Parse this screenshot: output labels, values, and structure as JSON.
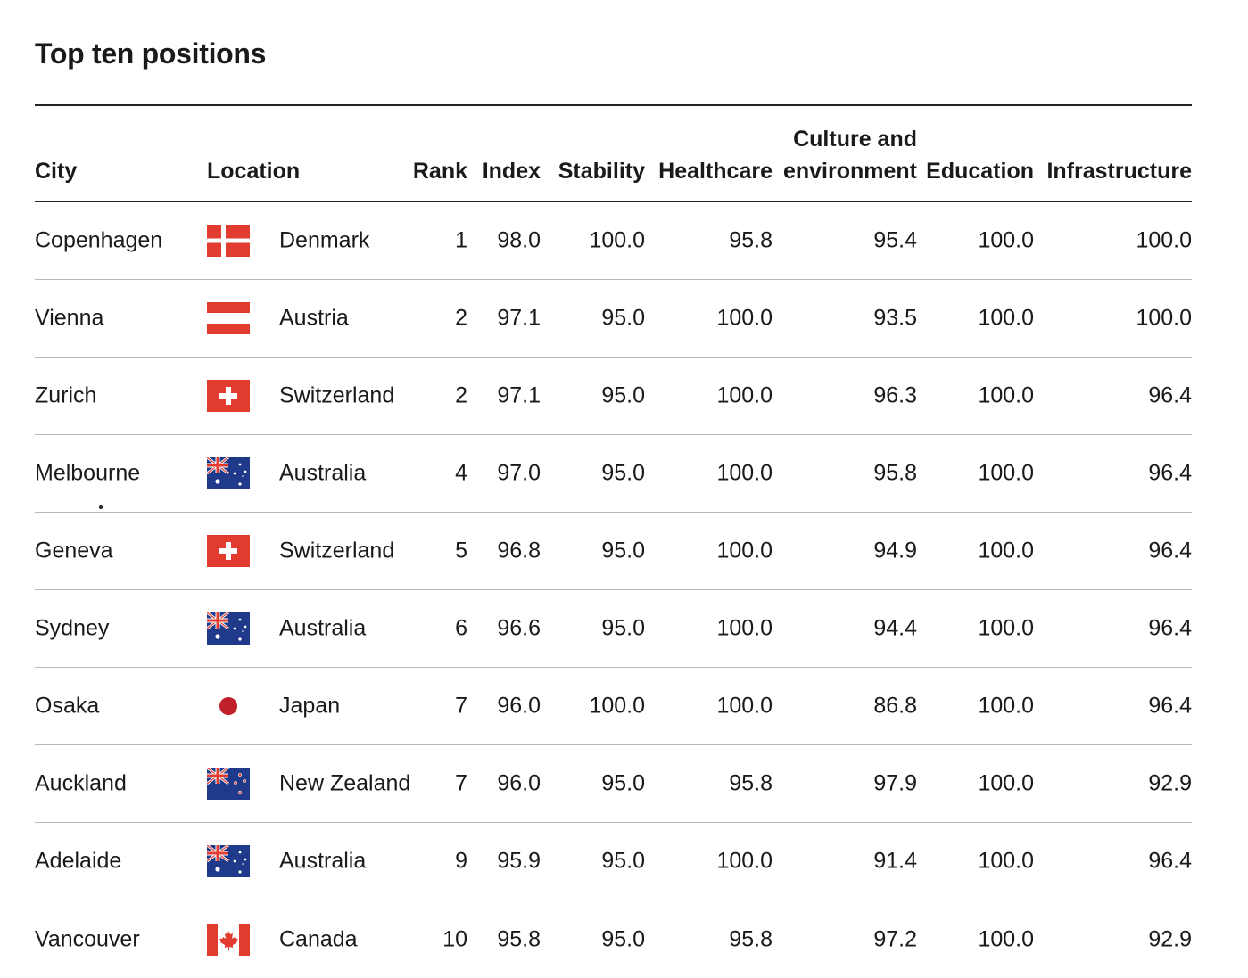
{
  "title": "Top ten positions",
  "headers": {
    "city": "City",
    "location": "Location",
    "rank": "Rank",
    "index": "Index",
    "stability": "Stability",
    "healthcare": "Healthcare",
    "culture": "Culture and environment",
    "education": "Education",
    "infrastructure": "Infrastructure"
  },
  "colors": {
    "flag_red": "#e23b30",
    "flag_navy": "#1f3a8a",
    "text": "#1a1a1a",
    "rule": "#222222",
    "divider": "#b8b8b8"
  },
  "rows": [
    {
      "city": "Copenhagen",
      "flag": "denmark-flag-icon",
      "location": "Denmark",
      "rank": "1",
      "index": "98.0",
      "stability": "100.0",
      "healthcare": "95.8",
      "culture": "95.4",
      "education": "100.0",
      "infrastructure": "100.0"
    },
    {
      "city": "Vienna",
      "flag": "austria-flag-icon",
      "location": "Austria",
      "rank": "2",
      "index": "97.1",
      "stability": "95.0",
      "healthcare": "100.0",
      "culture": "93.5",
      "education": "100.0",
      "infrastructure": "100.0"
    },
    {
      "city": "Zurich",
      "flag": "switzerland-flag-icon",
      "location": "Switzerland",
      "rank": "2",
      "index": "97.1",
      "stability": "95.0",
      "healthcare": "100.0",
      "culture": "96.3",
      "education": "100.0",
      "infrastructure": "96.4"
    },
    {
      "city": "Melbourne",
      "flag": "australia-flag-icon",
      "location": "Australia",
      "rank": "4",
      "index": "97.0",
      "stability": "95.0",
      "healthcare": "100.0",
      "culture": "95.8",
      "education": "100.0",
      "infrastructure": "96.4"
    },
    {
      "city": "Geneva",
      "flag": "switzerland-flag-icon",
      "location": "Switzerland",
      "rank": "5",
      "index": "96.8",
      "stability": "95.0",
      "healthcare": "100.0",
      "culture": "94.9",
      "education": "100.0",
      "infrastructure": "96.4"
    },
    {
      "city": "Sydney",
      "flag": "australia-flag-icon",
      "location": "Australia",
      "rank": "6",
      "index": "96.6",
      "stability": "95.0",
      "healthcare": "100.0",
      "culture": "94.4",
      "education": "100.0",
      "infrastructure": "96.4"
    },
    {
      "city": "Osaka",
      "flag": "japan-flag-icon",
      "location": "Japan",
      "rank": "7",
      "index": "96.0",
      "stability": "100.0",
      "healthcare": "100.0",
      "culture": "86.8",
      "education": "100.0",
      "infrastructure": "96.4"
    },
    {
      "city": "Auckland",
      "flag": "new-zealand-flag-icon",
      "location": "New Zealand",
      "rank": "7",
      "index": "96.0",
      "stability": "95.0",
      "healthcare": "95.8",
      "culture": "97.9",
      "education": "100.0",
      "infrastructure": "92.9"
    },
    {
      "city": "Adelaide",
      "flag": "australia-flag-icon",
      "location": "Australia",
      "rank": "9",
      "index": "95.9",
      "stability": "95.0",
      "healthcare": "100.0",
      "culture": "91.4",
      "education": "100.0",
      "infrastructure": "96.4"
    },
    {
      "city": "Vancouver",
      "flag": "canada-flag-icon",
      "location": "Canada",
      "rank": "10",
      "index": "95.8",
      "stability": "95.0",
      "healthcare": "95.8",
      "culture": "97.2",
      "education": "100.0",
      "infrastructure": "92.9"
    }
  ]
}
